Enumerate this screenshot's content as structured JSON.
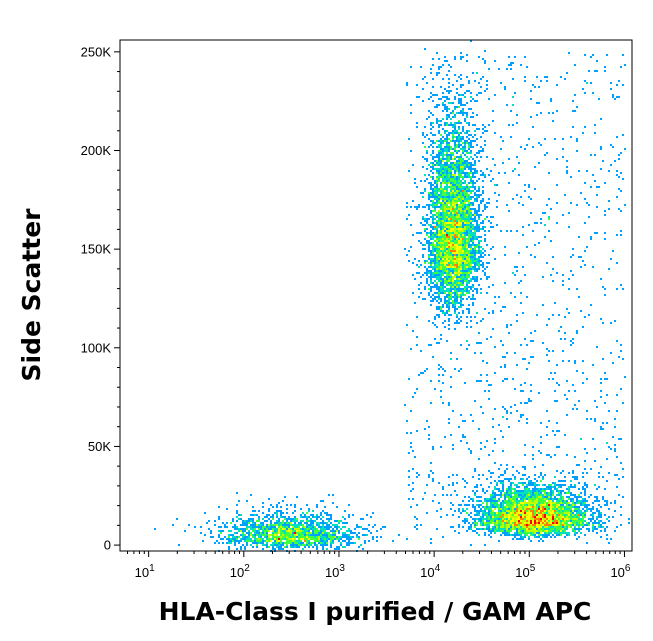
{
  "chart_data": {
    "type": "scatter",
    "xlabel": "HLA-Class I purified / GAM APC",
    "ylabel": "Side Scatter",
    "x_scale": "log",
    "xlim": [
      5,
      1200000
    ],
    "ylim": [
      -3000,
      256000
    ],
    "x_ticks": [
      {
        "value": 10,
        "base": "10",
        "exp": "1"
      },
      {
        "value": 100,
        "base": "10",
        "exp": "2"
      },
      {
        "value": 1000,
        "base": "10",
        "exp": "3"
      },
      {
        "value": 10000,
        "base": "10",
        "exp": "4"
      },
      {
        "value": 100000,
        "base": "10",
        "exp": "5"
      },
      {
        "value": 1000000,
        "base": "10",
        "exp": "6"
      }
    ],
    "y_ticks": [
      {
        "value": 0,
        "label": "0"
      },
      {
        "value": 50000,
        "label": "50K"
      },
      {
        "value": 100000,
        "label": "100K"
      },
      {
        "value": 150000,
        "label": "150K"
      },
      {
        "value": 200000,
        "label": "200K"
      },
      {
        "value": 250000,
        "label": "250K"
      }
    ],
    "grid": false,
    "density_colors": [
      "#0000ff",
      "#00a0ff",
      "#00e0c0",
      "#40ff40",
      "#c0ff00",
      "#ffff00",
      "#ff8000",
      "#ff0000"
    ],
    "populations": [
      {
        "x_center": 300,
        "y_center": 2000,
        "x_spread_decades": 0.35,
        "y_spread": 7000,
        "count": 1800
      },
      {
        "x_center": 16000,
        "y_center": 140000,
        "x_spread_decades": 0.13,
        "y_spread": 35000,
        "count": 5000
      },
      {
        "x_center": 110000,
        "y_center": 10000,
        "x_spread_decades": 0.28,
        "y_spread": 9000,
        "count": 4500
      }
    ]
  }
}
